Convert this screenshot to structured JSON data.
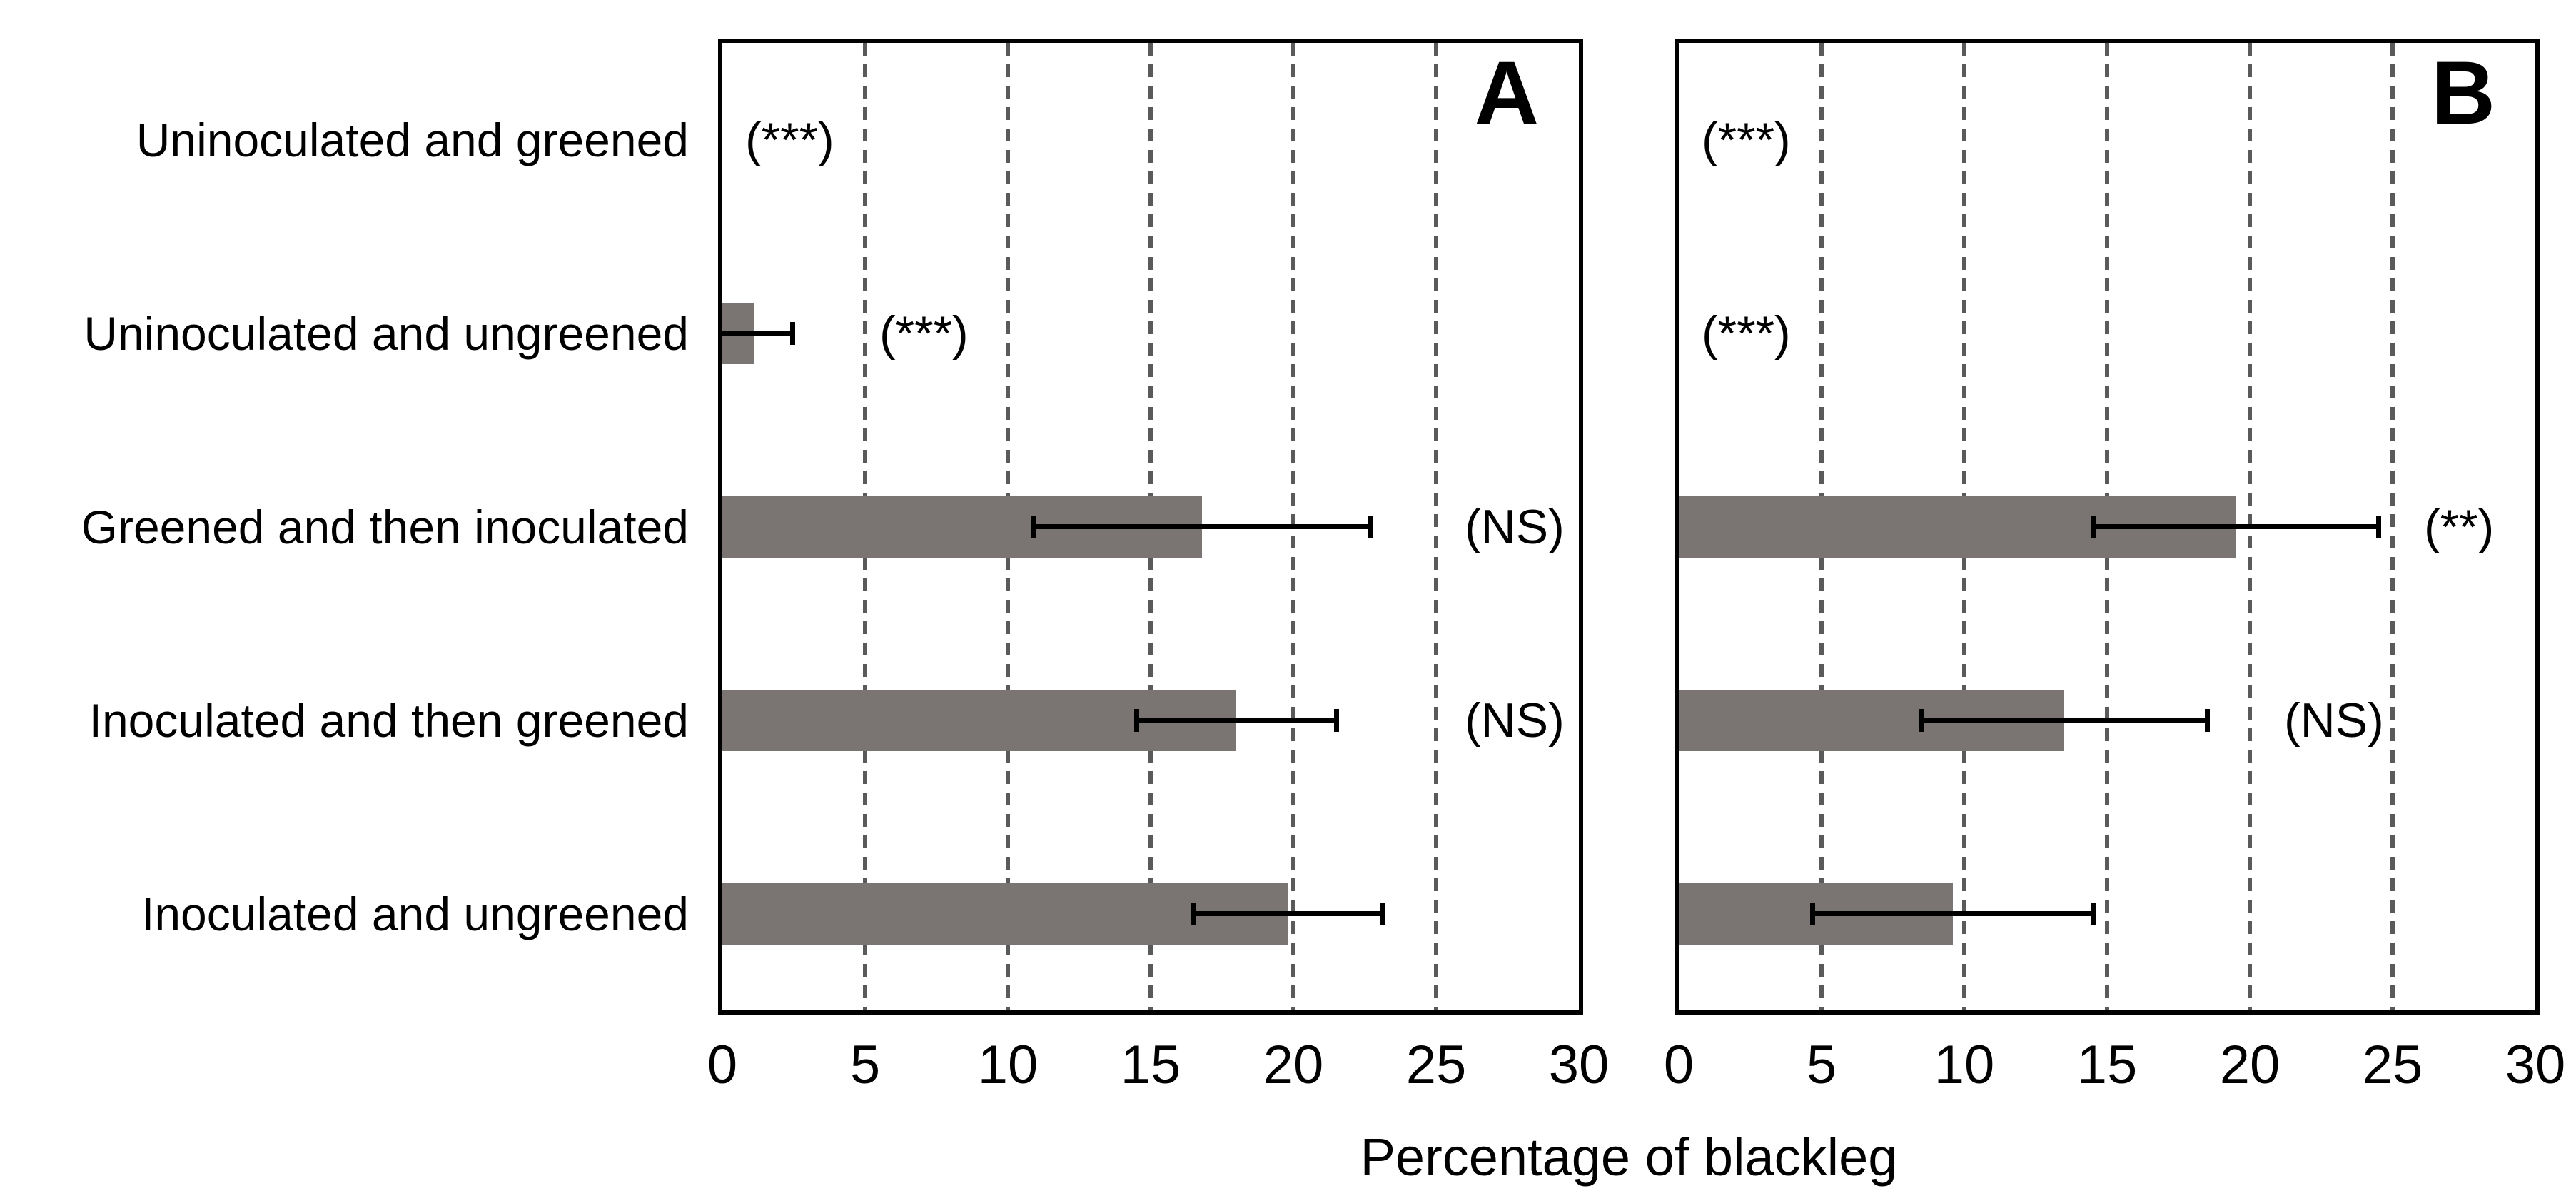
{
  "figure": {
    "background": "#ffffff"
  },
  "chart_data": {
    "type": "bar",
    "orientation": "horizontal",
    "title": "",
    "xlabel": "Percentage of blackleg",
    "xlim": [
      0,
      30
    ],
    "xticks": [
      "0",
      "5",
      "10",
      "15",
      "20",
      "25",
      "30"
    ],
    "xtick_values": [
      0,
      5,
      10,
      15,
      20,
      25,
      30
    ],
    "grid": {
      "style": "dashed",
      "axis": "vertical",
      "at": [
        5,
        10,
        15,
        20,
        25
      ],
      "color": "#5a5a5a"
    },
    "legend_position": "none",
    "bar_color": "#7a7573",
    "error_bar_color": "#000000",
    "categories": [
      "Uninoculated and greened",
      "Uninoculated and ungreened",
      "Greened and then inoculated",
      "Inoculated and then greened",
      "Inoculated and ungreened"
    ],
    "panels": [
      {
        "label": "A",
        "values": [
          0,
          1.1,
          16.8,
          18.0,
          19.8
        ],
        "errors": [
          0,
          1.35,
          5.9,
          3.5,
          3.3
        ],
        "annotations": [
          "(***)",
          "(***)",
          "(NS)",
          "(NS)",
          ""
        ],
        "annotation_x": [
          0.8,
          5.5,
          26.0,
          26.0,
          null
        ]
      },
      {
        "label": "B",
        "values": [
          0,
          0,
          19.5,
          13.5,
          9.6
        ],
        "errors": [
          0,
          0,
          5.0,
          5.0,
          4.9
        ],
        "annotations": [
          "(***)",
          "(***)",
          "(**)",
          "(NS)",
          ""
        ],
        "annotation_x": [
          0.8,
          0.8,
          26.1,
          21.2,
          null
        ]
      }
    ]
  }
}
